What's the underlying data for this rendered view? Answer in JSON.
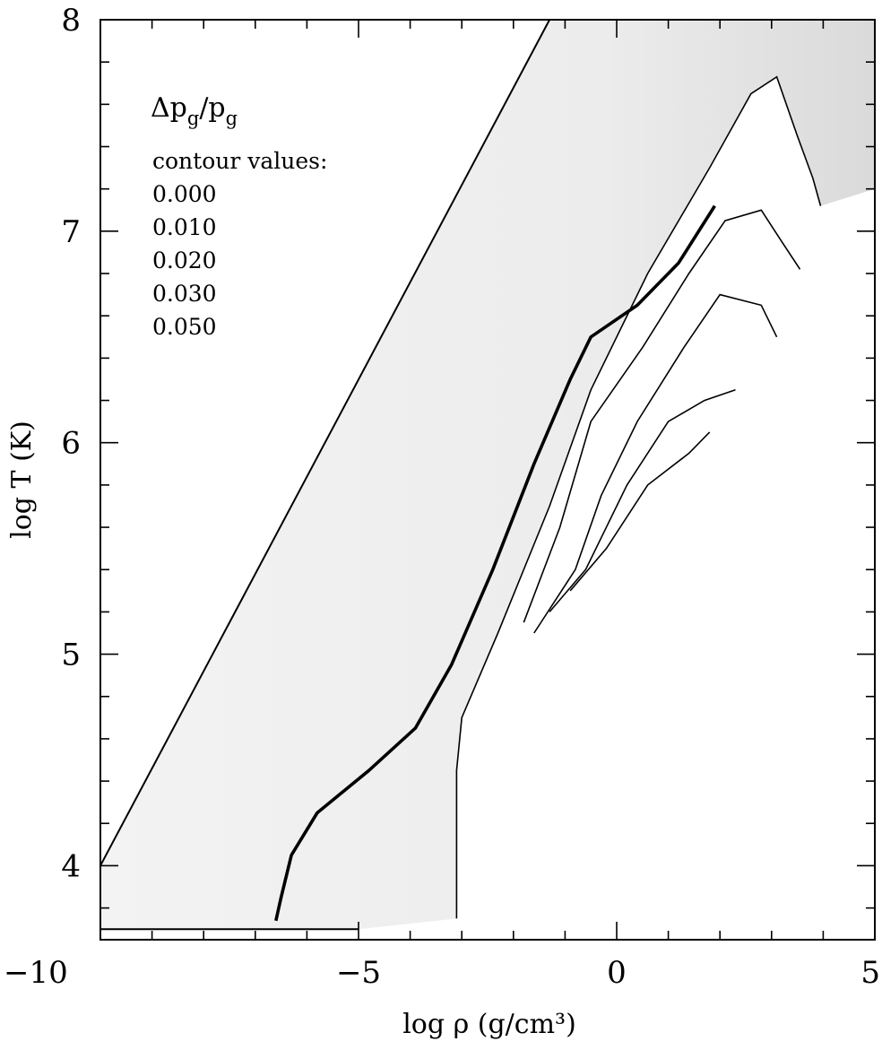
{
  "chart_data": {
    "type": "contour",
    "xlabel": "log ρ (g/cm³)",
    "ylabel": "log T (K)",
    "xlim": [
      -10,
      5
    ],
    "ylim": [
      3.65,
      8
    ],
    "xticks": [
      -10,
      -5,
      0,
      5
    ],
    "yticks": [
      4,
      5,
      6,
      7,
      8
    ],
    "x_minor_step": 1,
    "y_minor_step": 0.2,
    "legend": {
      "quantity": "Δp_g/p_g",
      "heading": "contour values:",
      "values": [
        "0.000",
        "0.010",
        "0.020",
        "0.030",
        "0.050"
      ]
    },
    "boundary_upper_left": [
      [
        -10,
        4.0
      ],
      [
        -1.3,
        8.0
      ]
    ],
    "boundary_lower": [
      [
        -10,
        3.7
      ],
      [
        -5,
        3.7
      ]
    ],
    "reference_track": [
      [
        -6.6,
        3.74
      ],
      [
        -6.5,
        3.85
      ],
      [
        -6.3,
        4.05
      ],
      [
        -5.8,
        4.25
      ],
      [
        -4.8,
        4.45
      ],
      [
        -3.9,
        4.65
      ],
      [
        -3.2,
        4.95
      ],
      [
        -2.4,
        5.4
      ],
      [
        -1.6,
        5.9
      ],
      [
        -0.9,
        6.3
      ],
      [
        -0.5,
        6.5
      ],
      [
        0.4,
        6.65
      ],
      [
        1.2,
        6.85
      ],
      [
        1.9,
        7.12
      ]
    ],
    "contours": [
      {
        "value": "0.000",
        "points": [
          [
            -3.1,
            3.75
          ],
          [
            -3.1,
            4.45
          ],
          [
            -3.0,
            4.7
          ],
          [
            -2.3,
            5.1
          ],
          [
            -1.3,
            5.7
          ],
          [
            -0.5,
            6.25
          ],
          [
            0.6,
            6.8
          ],
          [
            1.8,
            7.3
          ],
          [
            2.6,
            7.65
          ],
          [
            3.1,
            7.73
          ],
          [
            3.5,
            7.45
          ],
          [
            3.8,
            7.25
          ],
          [
            3.95,
            7.12
          ]
        ]
      },
      {
        "value": "0.010",
        "points": [
          [
            -1.8,
            5.15
          ],
          [
            -1.1,
            5.6
          ],
          [
            -0.5,
            6.1
          ],
          [
            0.5,
            6.45
          ],
          [
            1.4,
            6.8
          ],
          [
            2.1,
            7.05
          ],
          [
            2.8,
            7.1
          ],
          [
            3.2,
            6.95
          ],
          [
            3.55,
            6.82
          ]
        ]
      },
      {
        "value": "0.020",
        "points": [
          [
            -1.6,
            5.1
          ],
          [
            -0.8,
            5.4
          ],
          [
            -0.3,
            5.75
          ],
          [
            0.4,
            6.1
          ],
          [
            1.3,
            6.45
          ],
          [
            2.0,
            6.7
          ],
          [
            2.8,
            6.65
          ],
          [
            3.1,
            6.5
          ]
        ]
      },
      {
        "value": "0.030",
        "points": [
          [
            -1.3,
            5.2
          ],
          [
            -0.6,
            5.4
          ],
          [
            0.2,
            5.8
          ],
          [
            1.0,
            6.1
          ],
          [
            1.7,
            6.2
          ],
          [
            2.3,
            6.25
          ]
        ]
      },
      {
        "value": "0.050",
        "points": [
          [
            -0.9,
            5.3
          ],
          [
            -0.2,
            5.5
          ],
          [
            0.6,
            5.8
          ],
          [
            1.4,
            5.95
          ],
          [
            1.8,
            6.05
          ]
        ]
      }
    ]
  }
}
